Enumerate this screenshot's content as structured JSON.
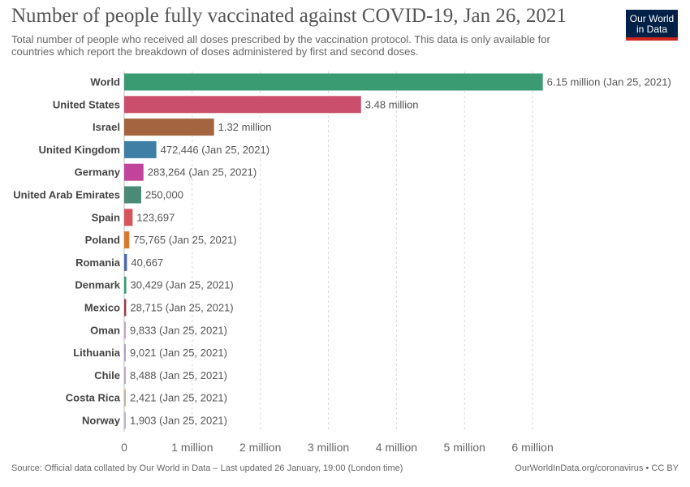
{
  "title": "Number of people fully vaccinated against COVID-19, Jan 26, 2021",
  "subtitle": "Total number of people who received all doses prescribed by the vaccination protocol. This data is only available for countries which report the breakdown of doses administered by first and second doses.",
  "logo": {
    "line1": "Our World",
    "line2": "in Data"
  },
  "footer": {
    "source": "Source: Official data collated by Our World in Data – Last updated 26 January, 19:00 (London time)",
    "credit": "OurWorldInData.org/coronavirus • CC BY"
  },
  "chart_data": {
    "type": "bar",
    "orientation": "horizontal",
    "categories": [
      "World",
      "United States",
      "Israel",
      "United Kingdom",
      "Germany",
      "United Arab Emirates",
      "Spain",
      "Poland",
      "Romania",
      "Denmark",
      "Mexico",
      "Oman",
      "Lithuania",
      "Chile",
      "Costa Rica",
      "Norway"
    ],
    "values": [
      6150000,
      3480000,
      1320000,
      472446,
      283264,
      250000,
      123697,
      75765,
      40667,
      30429,
      28715,
      9833,
      9021,
      8488,
      2421,
      1903
    ],
    "value_labels": [
      "6.15 million (Jan 25, 2021)",
      "3.48 million",
      "1.32 million",
      "472,446 (Jan 25, 2021)",
      "283,264 (Jan 25, 2021)",
      "250,000",
      "123,697",
      "75,765 (Jan 25, 2021)",
      "40,667",
      "30,429 (Jan 25, 2021)",
      "28,715 (Jan 25, 2021)",
      "9,833 (Jan 25, 2021)",
      "9,021 (Jan 25, 2021)",
      "8,488 (Jan 25, 2021)",
      "2,421 (Jan 25, 2021)",
      "1,903 (Jan 25, 2021)"
    ],
    "colors": [
      "#3a9a72",
      "#c94f6d",
      "#a3643f",
      "#3f7fa6",
      "#c2449a",
      "#4b8a77",
      "#d6545c",
      "#d47a2f",
      "#4d6aa8",
      "#3a9a72",
      "#9b3b4a",
      "#c4a3c9",
      "#b6a0c7",
      "#c4a3c9",
      "#c9b5a0",
      "#b9b3cf"
    ],
    "xlim": [
      0,
      6500000
    ],
    "xticks": [
      0,
      1000000,
      2000000,
      3000000,
      4000000,
      5000000,
      6000000
    ],
    "xtick_labels": [
      "0",
      "1 million",
      "2 million",
      "3 million",
      "4 million",
      "5 million",
      "6 million"
    ],
    "grid": true,
    "xlabel": "",
    "ylabel": ""
  }
}
